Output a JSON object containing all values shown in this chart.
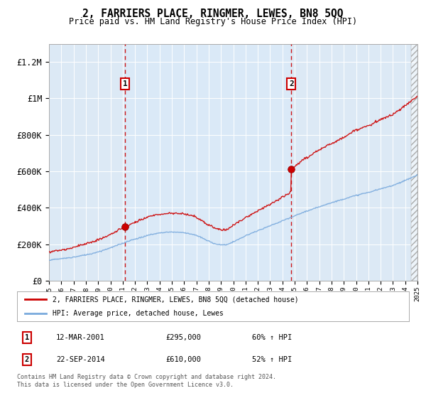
{
  "title": "2, FARRIERS PLACE, RINGMER, LEWES, BN8 5QQ",
  "subtitle": "Price paid vs. HM Land Registry's House Price Index (HPI)",
  "background_color": "#ffffff",
  "plot_bg_color": "#dce9f5",
  "highlight_color": "#c8ddf0",
  "ylim": [
    0,
    1300000
  ],
  "yticks": [
    0,
    200000,
    400000,
    600000,
    800000,
    1000000,
    1200000
  ],
  "ytick_labels": [
    "£0",
    "£200K",
    "£400K",
    "£600K",
    "£800K",
    "£1M",
    "£1.2M"
  ],
  "x_start_year": 1995,
  "x_end_year": 2025,
  "sale1_date": 2001.2,
  "sale1_price": 295000,
  "sale1_label": "1",
  "sale2_date": 2014.73,
  "sale2_price": 610000,
  "sale2_label": "2",
  "red_line_color": "#cc0000",
  "blue_line_color": "#7aaadd",
  "dashed_line_color": "#cc0000",
  "legend_label1": "2, FARRIERS PLACE, RINGMER, LEWES, BN8 5QQ (detached house)",
  "legend_label2": "HPI: Average price, detached house, Lewes",
  "table_row1": [
    "1",
    "12-MAR-2001",
    "£295,000",
    "60% ↑ HPI"
  ],
  "table_row2": [
    "2",
    "22-SEP-2014",
    "£610,000",
    "52% ↑ HPI"
  ],
  "footer": "Contains HM Land Registry data © Crown copyright and database right 2024.\nThis data is licensed under the Open Government Licence v3.0."
}
